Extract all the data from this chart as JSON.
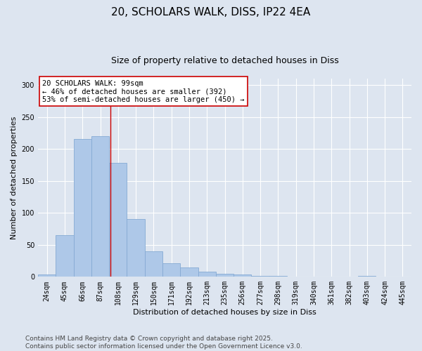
{
  "title_line1": "20, SCHOLARS WALK, DISS, IP22 4EA",
  "title_line2": "Size of property relative to detached houses in Diss",
  "xlabel": "Distribution of detached houses by size in Diss",
  "ylabel": "Number of detached properties",
  "bar_labels": [
    "24sqm",
    "45sqm",
    "66sqm",
    "87sqm",
    "108sqm",
    "129sqm",
    "150sqm",
    "171sqm",
    "192sqm",
    "213sqm",
    "235sqm",
    "256sqm",
    "277sqm",
    "298sqm",
    "319sqm",
    "340sqm",
    "361sqm",
    "382sqm",
    "403sqm",
    "424sqm",
    "445sqm"
  ],
  "bar_values": [
    4,
    65,
    216,
    220,
    178,
    90,
    40,
    21,
    15,
    8,
    5,
    4,
    1,
    1,
    0,
    0,
    0,
    0,
    1,
    0,
    0
  ],
  "bar_color": "#aec8e8",
  "bar_edgecolor": "#85aad4",
  "background_color": "#dde5f0",
  "grid_color": "#ffffff",
  "ylim": [
    0,
    310
  ],
  "yticks": [
    0,
    50,
    100,
    150,
    200,
    250,
    300
  ],
  "annotation_text": "20 SCHOLARS WALK: 99sqm\n← 46% of detached houses are smaller (392)\n53% of semi-detached houses are larger (450) →",
  "annotation_box_facecolor": "#ffffff",
  "annotation_box_edgecolor": "#cc0000",
  "line_color": "#cc0000",
  "footer_text": "Contains HM Land Registry data © Crown copyright and database right 2025.\nContains public sector information licensed under the Open Government Licence v3.0.",
  "title_fontsize": 11,
  "subtitle_fontsize": 9,
  "axis_label_fontsize": 8,
  "tick_fontsize": 7,
  "annotation_fontsize": 7.5,
  "footer_fontsize": 6.5,
  "ylabel_fontsize": 8
}
